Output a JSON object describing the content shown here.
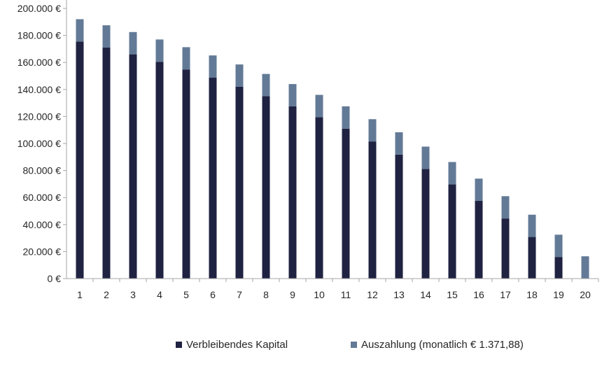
{
  "chart_data": {
    "type": "bar",
    "stacked": true,
    "categories": [
      "1",
      "2",
      "3",
      "4",
      "5",
      "6",
      "7",
      "8",
      "9",
      "10",
      "11",
      "12",
      "13",
      "14",
      "15",
      "16",
      "17",
      "18",
      "19",
      "20"
    ],
    "series": [
      {
        "name": "Verbleibendes Kapital",
        "color": "#1f2241",
        "values": [
          175500,
          171000,
          166000,
          160500,
          154800,
          148700,
          142000,
          135000,
          127500,
          119500,
          111000,
          101500,
          91800,
          81200,
          69800,
          57500,
          44500,
          30800,
          16000,
          0
        ]
      },
      {
        "name": "Auszahlung (monatlich € 1.371,88)",
        "color": "#637a97",
        "values": [
          16500,
          16500,
          16500,
          16500,
          16500,
          16500,
          16500,
          16500,
          16500,
          16500,
          16500,
          16500,
          16500,
          16500,
          16500,
          16500,
          16500,
          16500,
          16500,
          16500
        ]
      }
    ],
    "y_ticks": [
      "0 €",
      "20.000 €",
      "40.000 €",
      "60.000 €",
      "80.000 €",
      "100.000 €",
      "120.000 €",
      "140.000 €",
      "160.000 €",
      "180.000 €",
      "200.000 €"
    ],
    "ylim": [
      0,
      200000
    ],
    "grid": false,
    "legend": "bottom"
  }
}
